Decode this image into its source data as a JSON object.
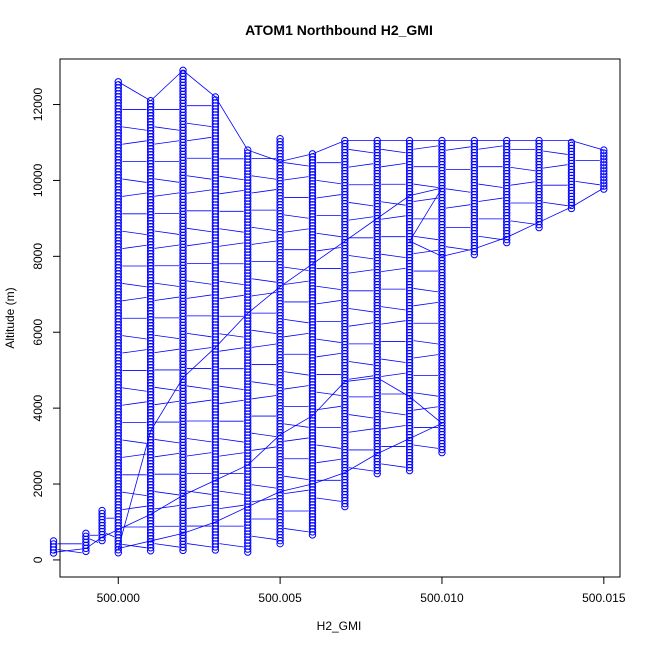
{
  "chart_data": {
    "type": "scatter",
    "title": "ATOM1 Northbound H2_GMI",
    "xlabel": "H2_GMI",
    "ylabel": "Altitude (m)",
    "xlim": [
      499.9982,
      500.0155
    ],
    "ylim": [
      -450,
      13200
    ],
    "x_ticks": [
      500.0,
      500.005,
      500.01,
      500.015
    ],
    "x_tick_labels": [
      "500.000",
      "500.005",
      "500.010",
      "500.015"
    ],
    "y_ticks": [
      0,
      2000,
      4000,
      6000,
      8000,
      10000,
      12000
    ],
    "y_tick_labels": [
      "0",
      "2000",
      "4000",
      "6000",
      "8000",
      "10000",
      "12000"
    ],
    "marker": "open-circle",
    "line_style": "connected",
    "color": "#0000ff",
    "grid": false,
    "legend": "none",
    "series": [
      {
        "columns": [
          {
            "x": 499.998,
            "y_min": 150,
            "y_max": 500
          },
          {
            "x": 499.999,
            "y_min": 200,
            "y_max": 700
          },
          {
            "x": 499.9995,
            "y_min": 500,
            "y_max": 1300
          },
          {
            "x": 500.0,
            "y_min": 150,
            "y_max": 12600
          },
          {
            "x": 500.001,
            "y_min": 180,
            "y_max": 12100
          },
          {
            "x": 500.002,
            "y_min": 200,
            "y_max": 12900
          },
          {
            "x": 500.003,
            "y_min": 200,
            "y_max": 12200
          },
          {
            "x": 500.004,
            "y_min": 150,
            "y_max": 10800
          },
          {
            "x": 500.005,
            "y_min": 400,
            "y_max": 11100
          },
          {
            "x": 500.006,
            "y_min": 600,
            "y_max": 10700
          },
          {
            "x": 500.007,
            "y_min": 1400,
            "y_max": 11050
          },
          {
            "x": 500.008,
            "y_min": 2200,
            "y_max": 11050
          },
          {
            "x": 500.009,
            "y_min": 2300,
            "y_max": 11050
          },
          {
            "x": 500.01,
            "y_min": 2800,
            "y_max": 11050
          },
          {
            "x": 500.011,
            "y_min": 8000,
            "y_max": 11050
          },
          {
            "x": 500.012,
            "y_min": 8300,
            "y_max": 11050
          },
          {
            "x": 500.013,
            "y_min": 8700,
            "y_max": 11050
          },
          {
            "x": 500.014,
            "y_min": 9200,
            "y_max": 11000
          },
          {
            "x": 500.015,
            "y_min": 9700,
            "y_max": 10800
          }
        ],
        "path": [
          [
            499.998,
            200
          ],
          [
            499.999,
            300
          ],
          [
            499.9995,
            600
          ],
          [
            500.0,
            800
          ],
          [
            500.001,
            1200
          ],
          [
            500.002,
            1700
          ],
          [
            500.003,
            2100
          ],
          [
            500.004,
            2500
          ],
          [
            500.005,
            3300
          ],
          [
            500.006,
            3800
          ],
          [
            500.007,
            4700
          ],
          [
            500.008,
            4800
          ],
          [
            500.009,
            4300
          ],
          [
            500.01,
            3600
          ],
          [
            500.009,
            3200
          ],
          [
            500.008,
            2800
          ],
          [
            500.007,
            2300
          ],
          [
            500.006,
            2000
          ],
          [
            500.005,
            1800
          ],
          [
            500.004,
            1400
          ],
          [
            500.003,
            1000
          ],
          [
            500.002,
            700
          ],
          [
            500.001,
            500
          ],
          [
            500.0,
            300
          ],
          [
            500.001,
            3400
          ],
          [
            500.002,
            4800
          ],
          [
            500.003,
            5600
          ],
          [
            500.004,
            6500
          ],
          [
            500.005,
            7200
          ],
          [
            500.006,
            7800
          ],
          [
            500.007,
            8400
          ],
          [
            500.008,
            9000
          ],
          [
            500.009,
            9600
          ],
          [
            500.01,
            9800
          ],
          [
            500.009,
            8400
          ],
          [
            500.01,
            8000
          ],
          [
            500.011,
            8200
          ],
          [
            500.012,
            8500
          ],
          [
            500.013,
            8900
          ],
          [
            500.014,
            9300
          ],
          [
            500.015,
            9800
          ],
          [
            500.015,
            10800
          ],
          [
            500.014,
            11050
          ],
          [
            500.013,
            11050
          ],
          [
            500.012,
            11050
          ],
          [
            500.011,
            11050
          ],
          [
            500.01,
            11050
          ],
          [
            500.009,
            11050
          ],
          [
            500.008,
            11050
          ],
          [
            500.007,
            11050
          ],
          [
            500.006,
            10700
          ],
          [
            500.005,
            10500
          ],
          [
            500.004,
            10800
          ],
          [
            500.003,
            12200
          ],
          [
            500.002,
            12900
          ],
          [
            500.001,
            12100
          ],
          [
            500.0,
            12600
          ]
        ]
      }
    ]
  }
}
